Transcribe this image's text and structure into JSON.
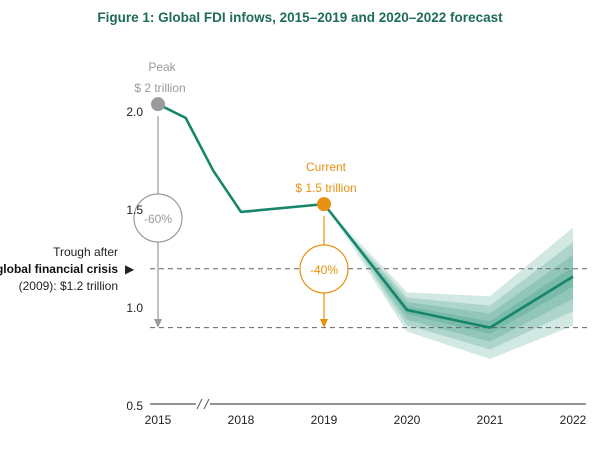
{
  "chart_data": {
    "type": "line",
    "title": "Figure 1: Global FDI infows, 2015–2019 and 2020–2022 forecast",
    "x_ticks": [
      "2015",
      "2018",
      "2019",
      "2020",
      "2021",
      "2022"
    ],
    "y_ticks": [
      "0.5",
      "1.0",
      "1.5",
      "2.0"
    ],
    "ylim": [
      0.5,
      2.1
    ],
    "axis_break_between": [
      "2015",
      "2018"
    ],
    "grid": false,
    "series": [
      {
        "x": [
          2015,
          2016,
          2017,
          2018,
          2019,
          2020,
          2021,
          2022
        ],
        "values": [
          2.04,
          1.97,
          1.7,
          1.49,
          1.53,
          0.99,
          0.9,
          1.16
        ],
        "color": "#16866a"
      }
    ],
    "forecast_band": {
      "x": [
        2019,
        2020,
        2021,
        2022
      ],
      "upper": [
        1.53,
        1.08,
        1.06,
        1.41
      ],
      "lower": [
        1.53,
        0.88,
        0.74,
        0.91
      ],
      "color": "#16866a"
    },
    "reference_lines": [
      {
        "value": 1.2,
        "style": "dashed"
      },
      {
        "value": 0.9,
        "style": "dashed"
      }
    ],
    "annotations": {
      "peak": {
        "line1": "Peak",
        "line2": "$ 2 trillion",
        "x": 2015,
        "y": 2.04,
        "color": "#9a9a9a",
        "change": "-60%"
      },
      "current": {
        "line1": "Current",
        "line2": "$ 1.5 trillion",
        "x": 2019,
        "y": 1.53,
        "color": "#e8900f",
        "change": "-40%"
      },
      "trough": {
        "line1": "Trough after",
        "line2": "global financial crisis",
        "line3": "(2009): $1.2 trillion",
        "marker": "▶"
      }
    }
  }
}
